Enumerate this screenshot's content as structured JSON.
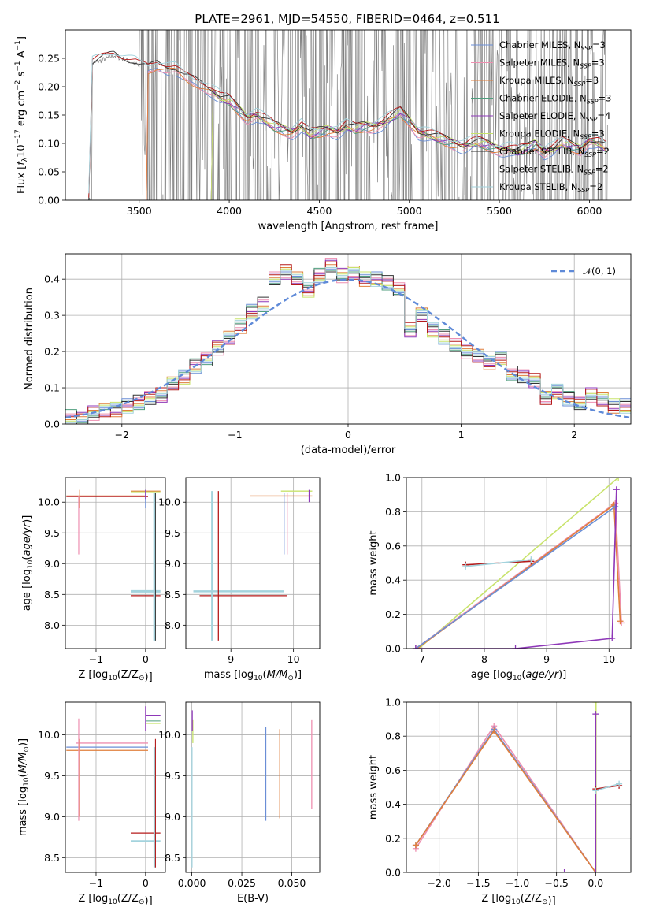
{
  "figure_title": "PLATE=2961, MJD=54550, FIBERID=0464, z=0.511",
  "colors": {
    "Chabrier MILES": "#6a8ed6",
    "Salpeter MILES": "#ee8fb0",
    "Kroupa MILES": "#e07f3c",
    "Chabrier ELODIE": "#4f9e7e",
    "Salpeter ELODIE": "#8e37b8",
    "Kroupa ELODIE": "#c8e36b",
    "Chabrier STELIB": "#333333",
    "Salpeter STELIB": "#b51a1a",
    "Kroupa STELIB": "#a3d3dd",
    "data": "#808080",
    "gauss": "#5f8ad8"
  },
  "chart_data": [
    {
      "id": "spectrum",
      "type": "line",
      "title": "PLATE=2961, MJD=54550, FIBERID=0464, z=0.511",
      "xlabel": "wavelength [Angstrom, rest frame]",
      "ylabel": "Flux [f_λ 10^-17 erg cm^-2 s^-1 A^-1]",
      "xlim": [
        3090,
        6230
      ],
      "ylim": [
        0,
        0.3
      ],
      "xticks": [
        3500,
        4000,
        4500,
        5000,
        5500,
        6000
      ],
      "yticks": [
        0.0,
        0.05,
        0.1,
        0.15,
        0.2,
        0.25
      ],
      "ytick_labels": [
        "0.00",
        "0.05",
        "0.10",
        "0.15",
        "0.20",
        "0.25"
      ],
      "legend": [
        "Chabrier MILES, N_SSP=3",
        "Salpeter MILES, N_SSP=3",
        "Kroupa MILES, N_SSP=3",
        "Chabrier ELODIE, N_SSP=3",
        "Salpeter ELODIE, N_SSP=4",
        "Kroupa ELODIE, N_SSP=3",
        "Chabrier STELIB, N_SSP=2",
        "Salpeter STELIB, N_SSP=2",
        "Kroupa STELIB, N_SSP=2"
      ],
      "legend_position": "top-right",
      "data_series": {
        "name": "data",
        "x_range": [
          3220,
          6100
        ],
        "noise_start": 3500
      },
      "model_curve": {
        "x": [
          3220,
          3240,
          3280,
          3320,
          3360,
          3400,
          3440,
          3480,
          3500,
          3550,
          3600,
          3650,
          3700,
          3750,
          3800,
          3850,
          3900,
          3950,
          4000,
          4050,
          4100,
          4150,
          4200,
          4250,
          4300,
          4350,
          4400,
          4450,
          4500,
          4550,
          4600,
          4650,
          4700,
          4750,
          4800,
          4850,
          4900,
          4950,
          5000,
          5050,
          5100,
          5150,
          5200,
          5250,
          5300,
          5350,
          5400,
          5450,
          5500,
          5550,
          5600,
          5650,
          5700,
          5750,
          5800,
          5850,
          5900,
          5950,
          6000,
          6050,
          6100
        ],
        "y": [
          0.0,
          0.24,
          0.245,
          0.25,
          0.255,
          0.25,
          0.245,
          0.24,
          0.235,
          0.23,
          0.24,
          0.235,
          0.23,
          0.215,
          0.21,
          0.205,
          0.195,
          0.18,
          0.175,
          0.16,
          0.145,
          0.15,
          0.14,
          0.13,
          0.125,
          0.12,
          0.13,
          0.115,
          0.12,
          0.125,
          0.12,
          0.13,
          0.125,
          0.13,
          0.13,
          0.135,
          0.145,
          0.155,
          0.14,
          0.12,
          0.115,
          0.11,
          0.105,
          0.1,
          0.095,
          0.1,
          0.1,
          0.095,
          0.09,
          0.09,
          0.085,
          0.09,
          0.1,
          0.085,
          0.09,
          0.1,
          0.095,
          0.09,
          0.105,
          0.1,
          0.09
        ]
      }
    },
    {
      "id": "residuals",
      "type": "line",
      "xlabel": "(data-model)/error",
      "ylabel": "Normed distribution",
      "xlim": [
        -2.5,
        2.5
      ],
      "ylim": [
        0,
        0.47
      ],
      "xticks": [
        -2,
        -1,
        0,
        1,
        2
      ],
      "xtick_labels": [
        "−2",
        "−1",
        "0",
        "1",
        "2"
      ],
      "yticks": [
        0.0,
        0.1,
        0.2,
        0.3,
        0.4
      ],
      "ytick_labels": [
        "0.0",
        "0.1",
        "0.2",
        "0.3",
        "0.4"
      ],
      "grid": true,
      "legend": [
        "𝒩(0, 1)"
      ],
      "legend_position": "top-right",
      "hist_bins": [
        -2.5,
        -2.4,
        -2.3,
        -2.2,
        -2.1,
        -2.0,
        -1.9,
        -1.8,
        -1.7,
        -1.6,
        -1.5,
        -1.4,
        -1.3,
        -1.2,
        -1.1,
        -1.0,
        -0.9,
        -0.8,
        -0.7,
        -0.6,
        -0.5,
        -0.4,
        -0.3,
        -0.2,
        -0.1,
        0.0,
        0.1,
        0.2,
        0.3,
        0.4,
        0.5,
        0.6,
        0.7,
        0.8,
        0.9,
        1.0,
        1.1,
        1.2,
        1.3,
        1.4,
        1.5,
        1.6,
        1.7,
        1.8,
        1.9,
        2.0,
        2.1,
        2.2,
        2.3,
        2.4,
        2.5
      ],
      "hist_base": [
        0.02,
        0.02,
        0.03,
        0.04,
        0.04,
        0.05,
        0.06,
        0.07,
        0.08,
        0.11,
        0.13,
        0.16,
        0.18,
        0.21,
        0.24,
        0.27,
        0.31,
        0.33,
        0.4,
        0.42,
        0.4,
        0.37,
        0.41,
        0.44,
        0.41,
        0.42,
        0.4,
        0.4,
        0.39,
        0.37,
        0.26,
        0.3,
        0.26,
        0.24,
        0.22,
        0.2,
        0.19,
        0.17,
        0.18,
        0.14,
        0.13,
        0.12,
        0.07,
        0.09,
        0.07,
        0.06,
        0.08,
        0.07,
        0.05,
        0.05
      ]
    },
    {
      "id": "age-vs-z",
      "type": "scatter",
      "xlabel": "Z [log10(Z/Z⊙)]",
      "ylabel": "age [log10(age/yr)]",
      "xlim": [
        -1.62,
        0.4
      ],
      "ylim": [
        7.62,
        10.4
      ],
      "xticks": [
        -1,
        0
      ],
      "xtick_labels": [
        "−1",
        "0"
      ],
      "yticks": [
        8.0,
        8.5,
        9.0,
        9.5,
        10.0
      ],
      "ytick_labels": [
        "8.0",
        "8.5",
        "9.0",
        "9.5",
        "10.0"
      ],
      "grid": true
    },
    {
      "id": "age-vs-mass",
      "type": "scatter",
      "xlabel": "mass [log10(M/M⊙)]",
      "ylabel": "",
      "xlim": [
        8.28,
        10.42
      ],
      "ylim": [
        7.62,
        10.4
      ],
      "xticks": [
        9,
        10
      ],
      "xtick_labels": [
        "9",
        "10"
      ],
      "yticks": [
        8.0,
        8.5,
        9.0,
        9.5,
        10.0
      ],
      "ytick_labels": [
        "8.0",
        "8.5",
        "9.0",
        "9.5",
        "10.0"
      ],
      "grid": true
    },
    {
      "id": "mw-vs-age",
      "type": "line",
      "xlabel": "age [log10(age/yr)]",
      "ylabel": "mass weight",
      "xlim": [
        6.75,
        10.35
      ],
      "ylim": [
        0,
        1
      ],
      "xticks": [
        7,
        8,
        9,
        10
      ],
      "xtick_labels": [
        "7",
        "8",
        "9",
        "10"
      ],
      "yticks": [
        0.0,
        0.2,
        0.4,
        0.6,
        0.8,
        1.0
      ],
      "ytick_labels": [
        "0.0",
        "0.2",
        "0.4",
        "0.6",
        "0.8",
        "1.0"
      ],
      "grid": true,
      "series": [
        {
          "model": "Kroupa ELODIE",
          "x": [
            6.95,
            10.15
          ],
          "y": [
            0.0,
            1.0
          ]
        },
        {
          "model": "Salpeter MILES",
          "x": [
            6.9,
            10.1,
            10.2
          ],
          "y": [
            0.0,
            0.85,
            0.15
          ]
        },
        {
          "model": "Kroupa MILES",
          "x": [
            6.92,
            10.08,
            10.18
          ],
          "y": [
            0.0,
            0.84,
            0.16
          ]
        },
        {
          "model": "Chabrier MILES",
          "x": [
            6.9,
            10.1
          ],
          "y": [
            0.0,
            0.83
          ]
        },
        {
          "model": "Salpeter ELODIE",
          "x": [
            6.9,
            8.5,
            10.05,
            10.12
          ],
          "y": [
            0.0,
            0.0,
            0.06,
            0.93
          ]
        },
        {
          "model": "Salpeter STELIB",
          "x": [
            7.7,
            8.75
          ],
          "y": [
            0.49,
            0.51
          ]
        },
        {
          "model": "Kroupa STELIB",
          "x": [
            7.7,
            8.75
          ],
          "y": [
            0.48,
            0.52
          ]
        }
      ]
    },
    {
      "id": "mass-vs-z",
      "type": "scatter",
      "xlabel": "Z [log10(Z/Z⊙)]",
      "ylabel": "mass [log10(M/M⊙)]",
      "xlim": [
        -1.62,
        0.4
      ],
      "ylim": [
        8.32,
        10.4
      ],
      "xticks": [
        -1,
        0
      ],
      "xtick_labels": [
        "−1",
        "0"
      ],
      "yticks": [
        8.5,
        9.0,
        9.5,
        10.0
      ],
      "ytick_labels": [
        "8.5",
        "9.0",
        "9.5",
        "10.0"
      ],
      "grid": true
    },
    {
      "id": "mass-vs-ebv",
      "type": "scatter",
      "xlabel": "E(B-V)",
      "ylabel": "",
      "xlim": [
        -0.003,
        0.064
      ],
      "ylim": [
        8.32,
        10.4
      ],
      "xticks": [
        0.0,
        0.025,
        0.05
      ],
      "xtick_labels": [
        "0.000",
        "0.025",
        "0.050"
      ],
      "yticks": [
        8.5,
        9.0,
        9.5,
        10.0
      ],
      "ytick_labels": [
        "8.5",
        "9.0",
        "9.5",
        "10.0"
      ],
      "grid": true,
      "segments": [
        {
          "model": "Chabrier MILES",
          "x": 0.037,
          "y": [
            8.95,
            10.1
          ]
        },
        {
          "model": "Kroupa MILES",
          "x": 0.044,
          "y": [
            8.98,
            10.07
          ]
        },
        {
          "model": "Salpeter MILES",
          "x": 0.06,
          "y": [
            9.1,
            10.18
          ]
        },
        {
          "model": "Kroupa ELODIE",
          "x": 0.0005,
          "y": [
            9.9,
            10.18
          ]
        },
        {
          "model": "Salpeter ELODIE",
          "x": 0.0002,
          "y": [
            10.05,
            10.3
          ]
        },
        {
          "model": "Kroupa STELIB",
          "x": 0.0001,
          "y": [
            8.38,
            9.85
          ]
        }
      ]
    },
    {
      "id": "mw-vs-z",
      "type": "line",
      "xlabel": "Z [log10(Z/Z⊙)]",
      "ylabel": "mass weight",
      "xlim": [
        -2.42,
        0.45
      ],
      "ylim": [
        0,
        1
      ],
      "xticks": [
        -2.0,
        -1.5,
        -1.0,
        -0.5,
        0.0
      ],
      "xtick_labels": [
        "−2.0",
        "−1.5",
        "−1.0",
        "−0.5",
        "0.0"
      ],
      "yticks": [
        0.0,
        0.2,
        0.4,
        0.6,
        0.8,
        1.0
      ],
      "ytick_labels": [
        "0.0",
        "0.2",
        "0.4",
        "0.6",
        "0.8",
        "1.0"
      ],
      "grid": true,
      "series": [
        {
          "model": "Salpeter MILES",
          "x": [
            -2.3,
            -1.3,
            0.0
          ],
          "y": [
            0.14,
            0.86,
            0.0
          ]
        },
        {
          "model": "Chabrier MILES",
          "x": [
            -2.3,
            -1.3,
            0.0
          ],
          "y": [
            0.16,
            0.84,
            0.0
          ]
        },
        {
          "model": "Kroupa MILES",
          "x": [
            -2.3,
            -1.3,
            0.0
          ],
          "y": [
            0.16,
            0.83,
            0.0
          ]
        },
        {
          "model": "Kroupa ELODIE",
          "x": [
            0.0,
            0.0
          ],
          "y": [
            0.0,
            1.0
          ]
        },
        {
          "model": "Salpeter ELODIE",
          "x": [
            -0.4,
            0.0,
            0.0
          ],
          "y": [
            0.0,
            0.0,
            0.93
          ]
        },
        {
          "model": "Salpeter STELIB",
          "x": [
            0.0,
            0.3
          ],
          "y": [
            0.49,
            0.51
          ]
        },
        {
          "model": "Kroupa STELIB",
          "x": [
            0.0,
            0.3
          ],
          "y": [
            0.48,
            0.52
          ]
        }
      ]
    }
  ]
}
